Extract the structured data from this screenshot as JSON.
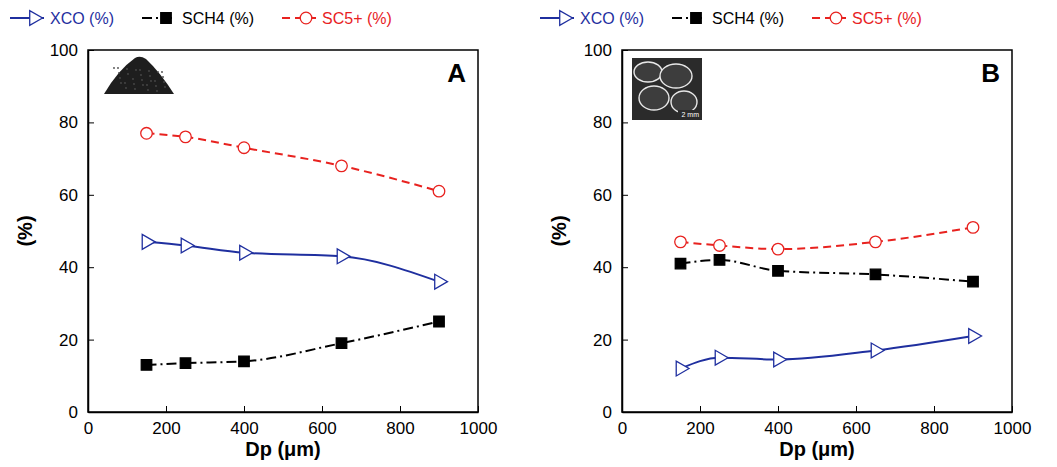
{
  "chart_data": [
    {
      "type": "line",
      "title": "A",
      "x": [
        150,
        250,
        400,
        650,
        900
      ],
      "series": [
        {
          "name": "XCO (%)",
          "color": "#1f2f9f",
          "marker": "triangle-right-open",
          "line_style": "solid",
          "values": [
            47,
            46,
            44,
            43,
            36
          ]
        },
        {
          "name": "SCH4 (%)",
          "color": "#000000",
          "marker": "square",
          "line_style": "dashdot",
          "values": [
            13,
            13.5,
            14,
            19,
            25
          ]
        },
        {
          "name": "SC5+ (%)",
          "color": "#e8221f",
          "marker": "circle-open",
          "line_style": "dashed",
          "values": [
            77,
            76,
            73,
            68,
            61
          ]
        }
      ],
      "x_label": "Dp (μm)",
      "y_label": "(%)",
      "xlim": [
        0,
        1000
      ],
      "xticks": [
        0,
        200,
        400,
        600,
        800,
        1000
      ],
      "ylim": [
        0,
        100
      ],
      "yticks": [
        0,
        20,
        40,
        60,
        80,
        100
      ],
      "grid": false,
      "legend": "top"
    },
    {
      "type": "line",
      "title": "B",
      "x": [
        150,
        250,
        400,
        650,
        900
      ],
      "series": [
        {
          "name": "XCO (%)",
          "color": "#1f2f9f",
          "marker": "triangle-right-open",
          "line_style": "solid",
          "values": [
            12,
            15,
            14.5,
            17,
            21
          ]
        },
        {
          "name": "SCH4 (%)",
          "color": "#000000",
          "marker": "square",
          "line_style": "dashdot",
          "values": [
            41,
            42,
            39,
            38,
            36
          ]
        },
        {
          "name": "SC5+ (%)",
          "color": "#e8221f",
          "marker": "circle-open",
          "line_style": "dashed",
          "values": [
            47,
            46,
            45,
            47,
            51
          ]
        }
      ],
      "x_label": "Dp (μm)",
      "y_label": "(%)",
      "xlim": [
        0,
        1000
      ],
      "xticks": [
        0,
        200,
        400,
        600,
        800,
        1000
      ],
      "ylim": [
        0,
        100
      ],
      "yticks": [
        0,
        20,
        40,
        60,
        80,
        100
      ],
      "annotations": [
        "2 mm"
      ],
      "grid": false,
      "legend": "top"
    }
  ]
}
